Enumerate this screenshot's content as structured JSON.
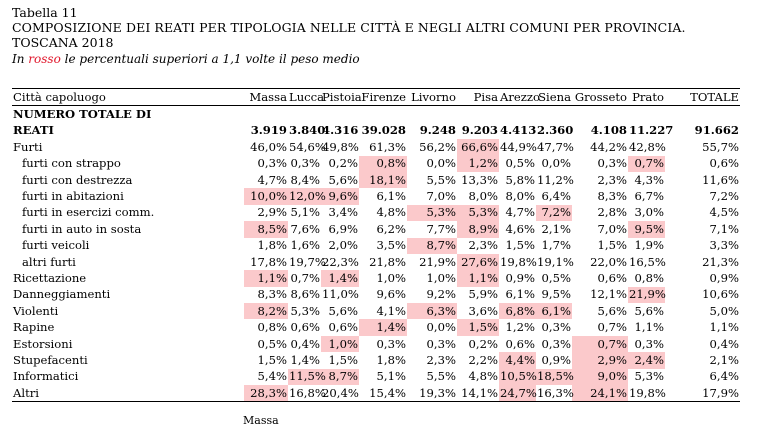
{
  "header": {
    "table_no": "Tabella 11",
    "title": "COMPOSIZIONE DEI REATI PER TIPOLOGIA NELLE CITTÀ  E NEGLI ALTRI COMUNI PER PROVINCIA.",
    "subtitle": "TOSCANA 2018",
    "note_prefix": "In ",
    "note_red": "rosso",
    "note_suffix": " le percentuali superiori a 1,1 volte il peso medio"
  },
  "colors": {
    "highlight": "#fbc9cb",
    "red_text": "#e0162b"
  },
  "columns": [
    "Città capoluogo",
    "Massa",
    "Lucca",
    "Pistoia",
    "Firenze",
    "Livorno",
    "Pisa",
    "Arezzo",
    "Siena",
    "Grosseto",
    "Prato",
    "TOTALE"
  ],
  "total_row": {
    "label1": "NUMERO TOTALE DI",
    "label2": "REATI",
    "values": [
      "3.919",
      "3.840",
      "4.316",
      "39.028",
      "9.248",
      "9.203",
      "4.413",
      "2.360",
      "4.108",
      "11.227",
      "91.662"
    ]
  },
  "rows": [
    {
      "label": "Furti",
      "values": [
        "46,0%",
        "54,6%",
        "49,8%",
        "61,3%",
        "56,2%",
        "66,6%",
        "44,9%",
        "47,7%",
        "44,2%",
        "42,8%",
        "55,7%"
      ],
      "hi": [
        5
      ]
    },
    {
      "label": "furti con strappo",
      "values": [
        "0,3%",
        "0,3%",
        "0,2%",
        "0,8%",
        "0,0%",
        "1,2%",
        "0,5%",
        "0,0%",
        "0,3%",
        "0,7%",
        "0,6%"
      ],
      "hi": [
        3,
        5,
        9
      ]
    },
    {
      "label": "furti con destrezza",
      "values": [
        "4,7%",
        "8,4%",
        "5,6%",
        "18,1%",
        "5,5%",
        "13,3%",
        "5,8%",
        "11,2%",
        "2,3%",
        "4,3%",
        "11,6%"
      ],
      "hi": [
        3
      ]
    },
    {
      "label": "furti in abitazioni",
      "values": [
        "10,0%",
        "12,0%",
        "9,6%",
        "6,1%",
        "7,0%",
        "8,0%",
        "8,0%",
        "6,4%",
        "8,3%",
        "6,7%",
        "7,2%"
      ],
      "hi": [
        0,
        1,
        2
      ]
    },
    {
      "label": "furti in esercizi comm.",
      "values": [
        "2,9%",
        "5,1%",
        "3,4%",
        "4,8%",
        "5,3%",
        "5,3%",
        "4,7%",
        "7,2%",
        "2,8%",
        "3,0%",
        "4,5%"
      ],
      "hi": [
        4,
        5,
        7
      ]
    },
    {
      "label": "furti in auto in sosta",
      "values": [
        "8,5%",
        "7,6%",
        "6,9%",
        "6,2%",
        "7,7%",
        "8,9%",
        "4,6%",
        "2,1%",
        "7,0%",
        "9,5%",
        "7,1%"
      ],
      "hi": [
        0,
        5,
        9
      ]
    },
    {
      "label": "furti veicoli",
      "values": [
        "1,8%",
        "1,6%",
        "2,0%",
        "3,5%",
        "8,7%",
        "2,3%",
        "1,5%",
        "1,7%",
        "1,5%",
        "1,9%",
        "3,3%"
      ],
      "hi": [
        4
      ]
    },
    {
      "label": "altri furti",
      "values": [
        "17,8%",
        "19,7%",
        "22,3%",
        "21,8%",
        "21,9%",
        "27,6%",
        "19,8%",
        "19,1%",
        "22,0%",
        "16,5%",
        "21,3%"
      ],
      "hi": [
        5
      ]
    },
    {
      "label": "Ricettazione",
      "values": [
        "1,1%",
        "0,7%",
        "1,4%",
        "1,0%",
        "1,0%",
        "1,1%",
        "0,9%",
        "0,5%",
        "0,6%",
        "0,8%",
        "0,9%"
      ],
      "hi": [
        0,
        2,
        5
      ]
    },
    {
      "label": "Danneggiamenti",
      "values": [
        "8,3%",
        "8,6%",
        "11,0%",
        "9,6%",
        "9,2%",
        "5,9%",
        "6,1%",
        "9,5%",
        "12,1%",
        "21,9%",
        "10,6%"
      ],
      "hi": [
        9
      ]
    },
    {
      "label": "Violenti",
      "values": [
        "8,2%",
        "5,3%",
        "5,6%",
        "4,1%",
        "6,3%",
        "3,6%",
        "6,8%",
        "6,1%",
        "5,6%",
        "5,6%",
        "5,0%"
      ],
      "hi": [
        0,
        4,
        6,
        7
      ]
    },
    {
      "label": "Rapine",
      "values": [
        "0,8%",
        "0,6%",
        "0,6%",
        "1,4%",
        "0,0%",
        "1,5%",
        "1,2%",
        "0,3%",
        "0,7%",
        "1,1%",
        "1,1%"
      ],
      "hi": [
        3,
        5
      ]
    },
    {
      "label": "Estorsioni",
      "values": [
        "0,5%",
        "0,4%",
        "1,0%",
        "0,3%",
        "0,3%",
        "0,2%",
        "0,6%",
        "0,3%",
        "0,7%",
        "0,3%",
        "0,4%"
      ],
      "hi": [
        2,
        8
      ]
    },
    {
      "label": "Stupefacenti",
      "values": [
        "1,5%",
        "1,4%",
        "1,5%",
        "1,8%",
        "2,3%",
        "2,2%",
        "4,4%",
        "0,9%",
        "2,9%",
        "2,4%",
        "2,1%"
      ],
      "hi": [
        6,
        8,
        9
      ]
    },
    {
      "label": "Informatici",
      "values": [
        "5,4%",
        "11,5%",
        "8,7%",
        "5,1%",
        "5,5%",
        "4,8%",
        "10,5%",
        "18,5%",
        "9,0%",
        "5,3%",
        "6,4%"
      ],
      "hi": [
        1,
        2,
        6,
        7,
        8
      ]
    },
    {
      "label": "Altri",
      "values": [
        "28,3%",
        "16,8%",
        "20,4%",
        "15,4%",
        "19,3%",
        "14,1%",
        "24,7%",
        "16,3%",
        "24,1%",
        "19,8%",
        "17,9%"
      ],
      "hi": [
        0,
        6,
        8
      ]
    }
  ],
  "footer_fragment": "Massa"
}
